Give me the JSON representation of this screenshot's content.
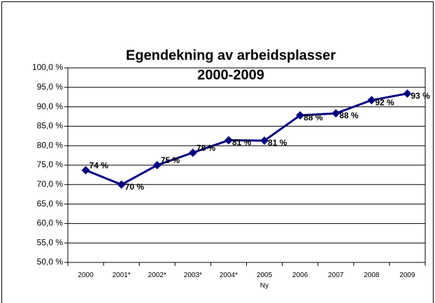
{
  "chart_data": {
    "type": "line",
    "title": [
      "Egendekning av arbeidsplasser",
      "2000-2009"
    ],
    "categories": [
      "2000",
      "2001*",
      "2002*",
      "2003*",
      "2004*",
      "2005 Ny",
      "2006",
      "2007",
      "2008",
      "2009"
    ],
    "series": [
      {
        "name": "Egendekning",
        "color": "#000080",
        "values": [
          73.7,
          70.0,
          75.0,
          78.2,
          81.4,
          81.3,
          87.8,
          88.3,
          91.7,
          93.4
        ],
        "value_labels": [
          "74 %",
          "70 %",
          "75 %",
          "78 %",
          "81 %",
          "81 %",
          "88 %",
          "88 %",
          "92 %",
          "93 %"
        ]
      }
    ],
    "ylim": [
      50,
      100
    ],
    "yticks": [
      {
        "value": 50,
        "label": "50,0 %"
      },
      {
        "value": 55,
        "label": "55,0 %"
      },
      {
        "value": 60,
        "label": "60,0 %"
      },
      {
        "value": 65,
        "label": "65,0 %"
      },
      {
        "value": 70,
        "label": "70,0 %"
      },
      {
        "value": 75,
        "label": "75,0 %"
      },
      {
        "value": 80,
        "label": "80,0 %"
      },
      {
        "value": 85,
        "label": "85,0 %"
      },
      {
        "value": 90,
        "label": "90,0 %"
      },
      {
        "value": 95,
        "label": "95,0 %"
      },
      {
        "value": 100,
        "label": "100,0 %"
      }
    ],
    "grid": true
  }
}
